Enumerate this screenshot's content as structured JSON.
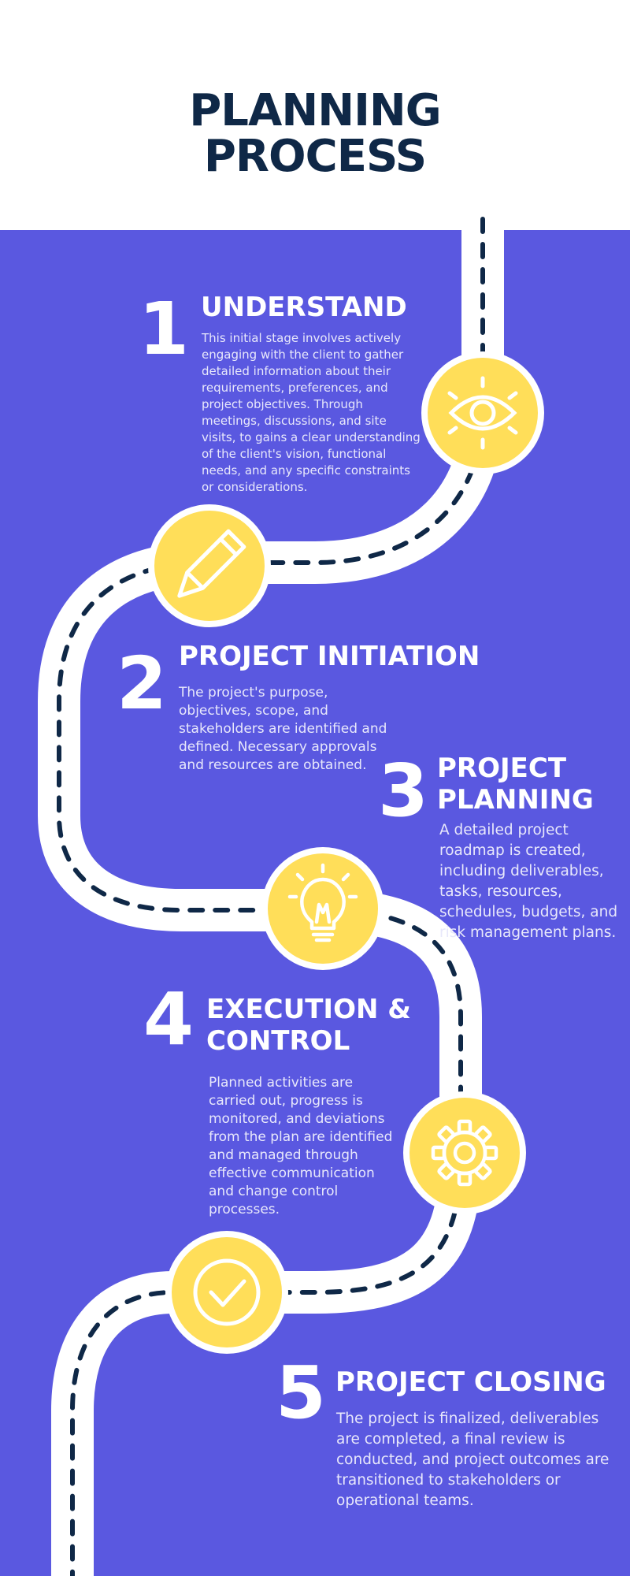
{
  "title": {
    "line1": "PLANNING",
    "line2": "PROCESS"
  },
  "colors": {
    "background": "#5a58e0",
    "header_background": "#ffffff",
    "title": "#0f2847",
    "road": "#ffffff",
    "dashes": "#0f2847",
    "node_fill": "#ffde59",
    "text": "#ffffff"
  },
  "steps": [
    {
      "number": "1",
      "title": [
        "UNDERSTAND"
      ],
      "description": "This initial stage involves actively engaging with the client to gather detailed information about their requirements, preferences, and project objectives. Through meetings, discussions, and site visits, to gains a clear understanding of the client's vision, functional needs, and any specific constraints or considerations.",
      "icon": "eye-icon"
    },
    {
      "number": "2",
      "title": [
        "PROJECT INITIATION"
      ],
      "description": "The project's purpose, objectives, scope, and stakeholders are identified and defined. Necessary approvals and resources are obtained.",
      "icon": "pencil-icon"
    },
    {
      "number": "3",
      "title": [
        "PROJECT",
        "PLANNING"
      ],
      "description": "A detailed project roadmap is created, including deliverables, tasks, resources, schedules, budgets, and risk management plans.",
      "icon": "lightbulb-icon"
    },
    {
      "number": "4",
      "title": [
        "EXECUTION &",
        "CONTROL"
      ],
      "description": "Planned activities are carried out, progress is monitored, and deviations from the plan are identified and managed through effective communication and change control processes.",
      "icon": "gear-icon"
    },
    {
      "number": "5",
      "title": [
        "PROJECT CLOSING"
      ],
      "description": "The project is finalized, deliverables are completed, a final review is conducted, and project outcomes are transitioned to stakeholders or operational teams.",
      "icon": "check-circle-icon"
    }
  ]
}
